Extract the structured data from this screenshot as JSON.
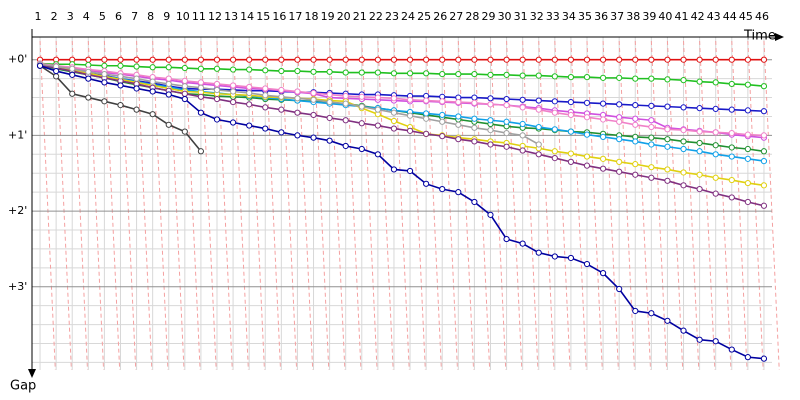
{
  "chart_data": {
    "type": "line",
    "x_label": "Time",
    "y_label": "Gap",
    "x": [
      1,
      2,
      3,
      4,
      5,
      6,
      7,
      8,
      9,
      10,
      11,
      12,
      13,
      14,
      15,
      16,
      17,
      18,
      19,
      20,
      21,
      22,
      23,
      24,
      25,
      26,
      27,
      28,
      29,
      30,
      31,
      32,
      33,
      34,
      35,
      36,
      37,
      38,
      39,
      40,
      41,
      42,
      43,
      44,
      45,
      46
    ],
    "xlim": [
      0.5,
      46.5
    ],
    "ylim": [
      -0.3,
      4.1
    ],
    "yticks": [
      {
        "value": 0,
        "label": "+0'"
      },
      {
        "value": 1,
        "label": "+1'"
      },
      {
        "value": 2,
        "label": "+2'"
      },
      {
        "value": 3,
        "label": "+3'"
      }
    ],
    "y_inverted": true,
    "grid": true,
    "series": [
      {
        "color": "#e01010",
        "values": [
          0,
          0,
          0,
          0,
          0,
          0,
          0,
          0,
          0,
          0,
          0,
          0,
          0,
          0,
          0,
          0,
          0,
          0,
          0,
          0,
          0,
          0,
          0,
          0,
          0,
          0,
          0,
          0,
          0,
          0,
          0,
          0,
          0,
          0,
          0,
          0,
          0,
          0,
          0,
          0,
          0,
          0,
          0,
          0,
          0,
          0
        ]
      },
      {
        "color": "#20c020",
        "values": [
          0.05,
          0.06,
          0.06,
          0.07,
          0.08,
          0.08,
          0.09,
          0.1,
          0.1,
          0.11,
          0.12,
          0.12,
          0.13,
          0.13,
          0.14,
          0.15,
          0.15,
          0.16,
          0.16,
          0.17,
          0.17,
          0.17,
          0.18,
          0.18,
          0.18,
          0.19,
          0.19,
          0.19,
          0.2,
          0.2,
          0.21,
          0.21,
          0.22,
          0.23,
          0.23,
          0.24,
          0.24,
          0.25,
          0.25,
          0.26,
          0.27,
          0.29,
          0.3,
          0.32,
          0.33,
          0.35
        ]
      },
      {
        "color": "#1818c8",
        "values": [
          0.08,
          0.11,
          0.15,
          0.18,
          0.21,
          0.25,
          0.28,
          0.31,
          0.35,
          0.38,
          0.39,
          0.39,
          0.4,
          0.41,
          0.41,
          0.42,
          0.43,
          0.43,
          0.44,
          0.45,
          0.46,
          0.46,
          0.47,
          0.48,
          0.48,
          0.49,
          0.5,
          0.5,
          0.51,
          0.52,
          0.53,
          0.54,
          0.55,
          0.56,
          0.57,
          0.58,
          0.59,
          0.6,
          0.61,
          0.62,
          0.63,
          0.64,
          0.65,
          0.66,
          0.67,
          0.68
        ]
      },
      {
        "color": "#d050e0",
        "values": [
          0.06,
          0.09,
          0.11,
          0.14,
          0.17,
          0.19,
          0.22,
          0.25,
          0.27,
          0.3,
          0.32,
          0.34,
          0.36,
          0.38,
          0.39,
          0.41,
          0.43,
          0.45,
          0.5,
          0.51,
          0.52,
          0.53,
          0.54,
          0.55,
          0.55,
          0.56,
          0.57,
          0.58,
          0.59,
          0.6,
          0.62,
          0.64,
          0.67,
          0.69,
          0.71,
          0.73,
          0.76,
          0.78,
          0.8,
          0.9,
          0.92,
          0.94,
          0.96,
          0.99,
          1.01,
          1.03
        ]
      },
      {
        "color": "#209030",
        "values": [
          0.08,
          0.12,
          0.16,
          0.2,
          0.24,
          0.29,
          0.33,
          0.37,
          0.41,
          0.45,
          0.46,
          0.48,
          0.49,
          0.5,
          0.52,
          0.53,
          0.54,
          0.55,
          0.57,
          0.58,
          0.61,
          0.64,
          0.67,
          0.7,
          0.73,
          0.76,
          0.79,
          0.82,
          0.85,
          0.88,
          0.9,
          0.91,
          0.93,
          0.95,
          0.96,
          0.98,
          1.0,
          1.02,
          1.03,
          1.05,
          1.08,
          1.1,
          1.13,
          1.16,
          1.18,
          1.21
        ]
      },
      {
        "color": "#10a0e8",
        "values": [
          0.07,
          0.11,
          0.14,
          0.18,
          0.22,
          0.25,
          0.29,
          0.33,
          0.36,
          0.4,
          0.42,
          0.44,
          0.46,
          0.48,
          0.5,
          0.52,
          0.54,
          0.56,
          0.58,
          0.6,
          0.62,
          0.64,
          0.67,
          0.69,
          0.71,
          0.73,
          0.75,
          0.78,
          0.8,
          0.82,
          0.85,
          0.89,
          0.92,
          0.95,
          0.99,
          1.02,
          1.05,
          1.08,
          1.12,
          1.15,
          1.18,
          1.21,
          1.25,
          1.28,
          1.31,
          1.34
        ]
      },
      {
        "color": "#e0d010",
        "values": [
          0.06,
          0.1,
          0.14,
          0.18,
          0.22,
          0.26,
          0.3,
          0.34,
          0.38,
          0.42,
          0.43,
          0.45,
          0.46,
          0.47,
          0.49,
          0.5,
          0.51,
          0.52,
          0.54,
          0.55,
          0.64,
          0.72,
          0.81,
          0.89,
          0.98,
          1.0,
          1.03,
          1.05,
          1.08,
          1.1,
          1.14,
          1.17,
          1.21,
          1.24,
          1.28,
          1.31,
          1.35,
          1.38,
          1.42,
          1.45,
          1.49,
          1.52,
          1.56,
          1.59,
          1.63,
          1.66
        ]
      },
      {
        "color": "#803080",
        "values": [
          0.07,
          0.11,
          0.15,
          0.2,
          0.24,
          0.28,
          0.32,
          0.37,
          0.41,
          0.45,
          0.49,
          0.52,
          0.56,
          0.59,
          0.63,
          0.66,
          0.7,
          0.73,
          0.77,
          0.8,
          0.84,
          0.87,
          0.91,
          0.94,
          0.98,
          1.01,
          1.05,
          1.08,
          1.12,
          1.15,
          1.2,
          1.25,
          1.3,
          1.35,
          1.4,
          1.44,
          1.48,
          1.52,
          1.56,
          1.6,
          1.66,
          1.71,
          1.77,
          1.82,
          1.88,
          1.93
        ]
      },
      {
        "color": "#f080c8",
        "values": [
          0.05,
          0.08,
          0.1,
          0.13,
          0.15,
          0.18,
          0.2,
          0.23,
          0.25,
          0.28,
          0.3,
          0.32,
          0.34,
          0.36,
          0.38,
          0.4,
          0.42,
          0.44,
          0.46,
          0.48,
          0.49,
          0.5,
          0.51,
          0.53,
          0.54,
          0.55,
          0.56,
          0.57,
          0.59,
          0.6,
          0.63,
          0.66,
          0.7,
          0.73,
          0.76,
          0.79,
          0.82,
          0.86,
          0.89,
          0.92,
          0.93,
          0.95,
          0.96,
          0.97,
          0.99,
          1.0
        ]
      },
      {
        "color": "#a0a0a0",
        "values": [
          0.06,
          0.09,
          0.12,
          0.16,
          0.19,
          0.22,
          0.25,
          0.29,
          0.32,
          0.35,
          0.37,
          0.4,
          0.42,
          0.44,
          0.47,
          0.49,
          0.51,
          0.53,
          0.56,
          0.58,
          0.62,
          0.66,
          0.7,
          0.74,
          0.78,
          0.82,
          0.86,
          0.9,
          0.93,
          0.97,
          1.0,
          1.12,
          null,
          null,
          null,
          null,
          null,
          null,
          null,
          null,
          null,
          null,
          null,
          null,
          null,
          null
        ]
      },
      {
        "color": "#404040",
        "values": [
          0.08,
          0.22,
          0.45,
          0.5,
          0.55,
          0.6,
          0.66,
          0.72,
          0.86,
          0.95,
          1.21,
          null,
          null,
          null,
          null,
          null,
          null,
          null,
          null,
          null,
          null,
          null,
          null,
          null,
          null,
          null,
          null,
          null,
          null,
          null,
          null,
          null,
          null,
          null,
          null,
          null,
          null,
          null,
          null,
          null,
          null,
          null,
          null,
          null,
          null,
          null
        ]
      },
      {
        "color": "#0000a0",
        "values": [
          0.08,
          0.15,
          0.2,
          0.25,
          0.3,
          0.34,
          0.38,
          0.42,
          0.46,
          0.52,
          0.7,
          0.79,
          0.83,
          0.87,
          0.91,
          0.96,
          1.0,
          1.03,
          1.07,
          1.14,
          1.18,
          1.25,
          1.45,
          1.47,
          1.64,
          1.71,
          1.75,
          1.88,
          2.05,
          2.37,
          2.43,
          2.55,
          2.6,
          2.62,
          2.7,
          2.82,
          3.03,
          3.32,
          3.35,
          3.45,
          3.58,
          3.7,
          3.72,
          3.83,
          3.93,
          3.95
        ]
      }
    ]
  }
}
